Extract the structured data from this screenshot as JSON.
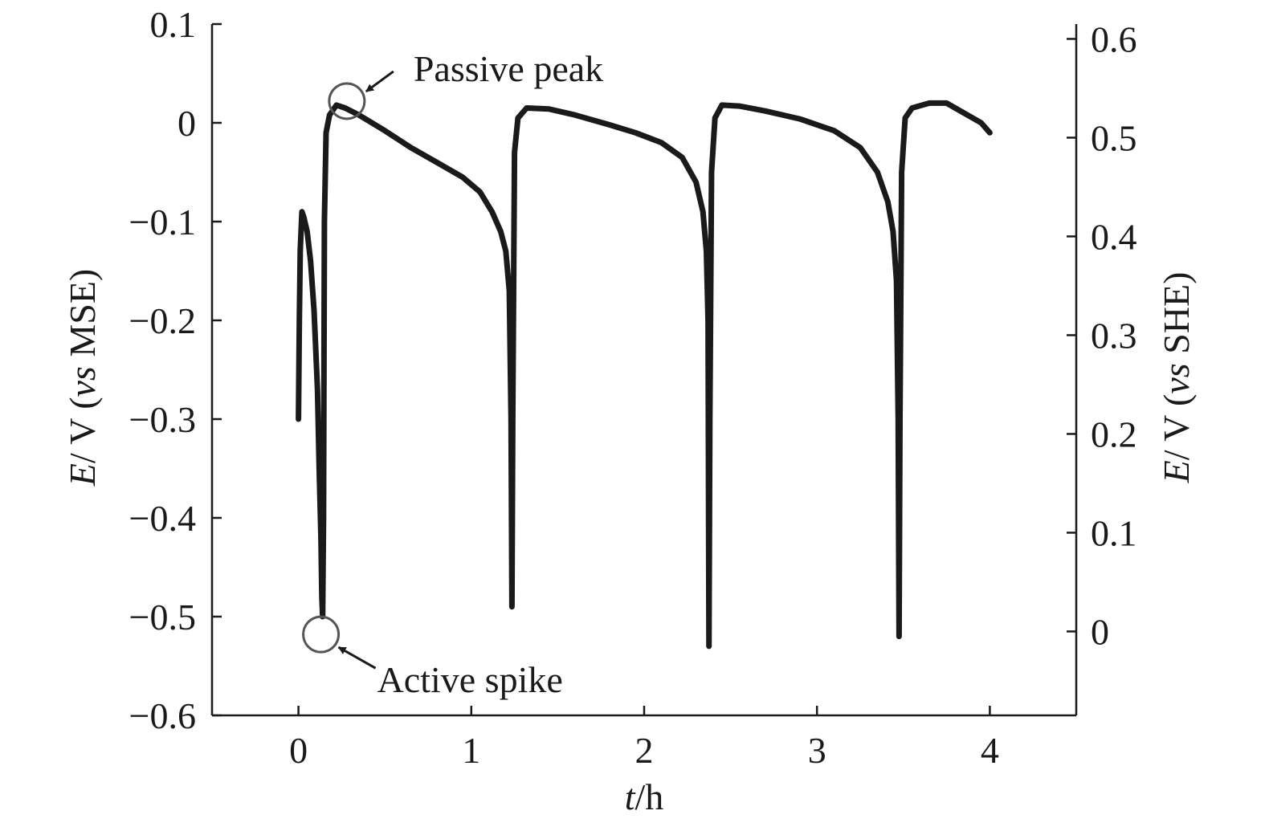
{
  "chart_data": {
    "type": "line",
    "x_axis": {
      "label_italic": "t",
      "label_rest": "/h",
      "range": [
        -0.5,
        4.5
      ],
      "ticks": [
        0,
        1,
        2,
        3,
        4
      ],
      "tick_labels": [
        "0",
        "1",
        "2",
        "3",
        "4"
      ]
    },
    "y_axis_left": {
      "label_italic": "E",
      "label_mid": "/ V (",
      "label_vs": "vs",
      "label_end": " MSE)",
      "range": [
        -0.6,
        0.1
      ],
      "ticks": [
        0.1,
        0,
        -0.1,
        -0.2,
        -0.3,
        -0.4,
        -0.5,
        -0.6
      ],
      "tick_labels": [
        "0.1",
        "0",
        "−0.1",
        "−0.2",
        "−0.3",
        "−0.4",
        "−0.5",
        "−0.6"
      ]
    },
    "y_axis_right": {
      "label_italic": "E",
      "label_mid": "/ V (",
      "label_vs": "vs",
      "label_end": " SHE)",
      "offset_from_left": 0.515,
      "ticks": [
        0.6,
        0.5,
        0.4,
        0.3,
        0.2,
        0.1,
        0
      ],
      "tick_labels": [
        "0.6",
        "0.5",
        "0.4",
        "0.3",
        "0.2",
        "0.1",
        "0"
      ]
    },
    "series": [
      {
        "color": "#1a1a1a",
        "x": [
          0.0,
          0.005,
          0.01,
          0.02,
          0.03,
          0.05,
          0.07,
          0.09,
          0.11,
          0.12,
          0.13,
          0.135,
          0.14,
          0.145,
          0.15,
          0.16,
          0.18,
          0.22,
          0.27,
          0.35,
          0.5,
          0.65,
          0.8,
          0.95,
          1.05,
          1.12,
          1.17,
          1.2,
          1.22,
          1.23,
          1.235,
          1.24,
          1.25,
          1.27,
          1.32,
          1.45,
          1.6,
          1.8,
          1.95,
          2.1,
          2.22,
          2.3,
          2.34,
          2.36,
          2.37,
          2.375,
          2.38,
          2.39,
          2.41,
          2.45,
          2.55,
          2.7,
          2.9,
          3.1,
          3.25,
          3.35,
          3.41,
          3.44,
          3.46,
          3.47,
          3.475,
          3.48,
          3.49,
          3.51,
          3.55,
          3.65,
          3.75,
          3.85,
          3.95,
          4.0
        ],
        "y": [
          -0.3,
          -0.2,
          -0.13,
          -0.09,
          -0.095,
          -0.11,
          -0.14,
          -0.19,
          -0.27,
          -0.35,
          -0.42,
          -0.48,
          -0.5,
          -0.4,
          -0.1,
          -0.01,
          0.008,
          0.018,
          0.015,
          0.008,
          -0.008,
          -0.025,
          -0.04,
          -0.055,
          -0.07,
          -0.09,
          -0.11,
          -0.13,
          -0.17,
          -0.3,
          -0.49,
          -0.3,
          -0.03,
          0.005,
          0.015,
          0.014,
          0.008,
          -0.002,
          -0.01,
          -0.02,
          -0.035,
          -0.06,
          -0.09,
          -0.13,
          -0.2,
          -0.53,
          -0.3,
          -0.05,
          0.005,
          0.018,
          0.017,
          0.012,
          0.004,
          -0.008,
          -0.025,
          -0.05,
          -0.08,
          -0.11,
          -0.16,
          -0.3,
          -0.52,
          -0.3,
          -0.05,
          0.005,
          0.015,
          0.02,
          0.02,
          0.01,
          0.0,
          -0.01
        ]
      }
    ],
    "annotations": [
      {
        "text": "Passive peak",
        "x": 0.28,
        "y": 0.022
      },
      {
        "text": "Active spike",
        "x": 0.13,
        "y": -0.518
      }
    ]
  }
}
